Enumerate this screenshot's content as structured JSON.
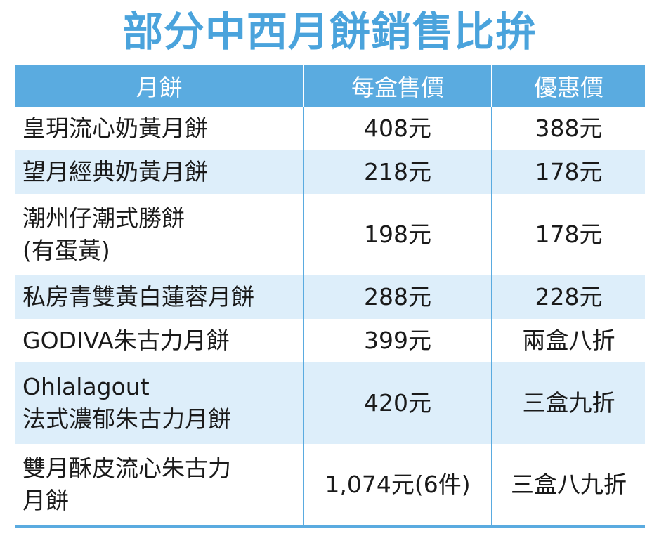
{
  "title": "部分中西月餅銷售比拚",
  "headers": [
    "月餅",
    "每盒售價",
    "優惠價"
  ],
  "rows": [
    {
      "name": [
        "皇玥流心奶黃月餅"
      ],
      "price": "408元",
      "offer": "388元"
    },
    {
      "name": [
        "望月經典奶黃月餅"
      ],
      "price": "218元",
      "offer": "178元"
    },
    {
      "name": [
        "潮州仔潮式勝餅",
        "(有蛋黃)"
      ],
      "price": "198元",
      "offer": "178元"
    },
    {
      "name": [
        "私房青雙黃白蓮蓉月餅"
      ],
      "price": "288元",
      "offer": "228元"
    },
    {
      "name": [
        "GODIVA朱古力月餅"
      ],
      "price": "399元",
      "offer": "兩盒八折"
    },
    {
      "name": [
        "Ohlalagout",
        "法式濃郁朱古力月餅"
      ],
      "price": "420元",
      "offer": "三盒九折"
    },
    {
      "name": [
        "雙月酥皮流心朱古力",
        "月餅"
      ],
      "price": "1,074元(6件)",
      "offer": "三盒八九折"
    }
  ],
  "colors": {
    "accent": "#4aa3dc",
    "header_bg": "#5aabe0",
    "band_bg": "#ddeefa"
  }
}
